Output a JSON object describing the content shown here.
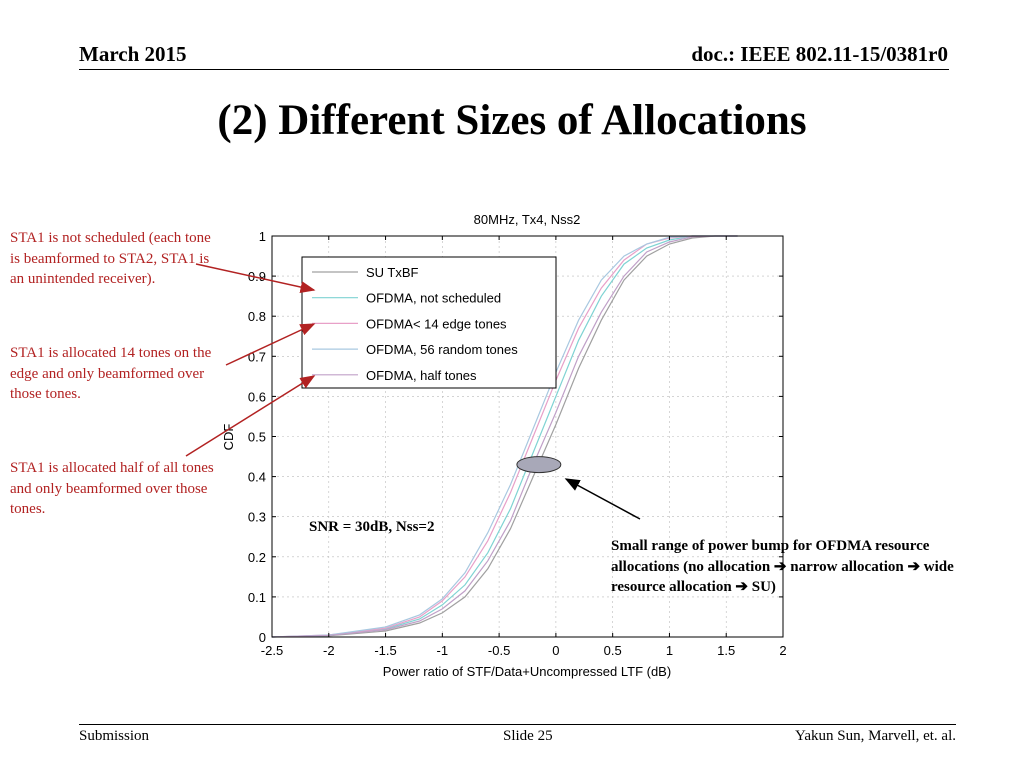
{
  "header": {
    "date": "March 2015",
    "doc": "doc.: IEEE 802.11-15/0381r0"
  },
  "slide_title": "(2) Different Sizes of Allocations",
  "annotations": {
    "note1": "STA1 is not scheduled (each tone is beamformed to STA2, STA1 is an unintended receiver).",
    "note2": "STA1 is allocated 14 tones on the edge and only beamformed over those tones.",
    "note3": "STA1 is allocated half of all tones and only beamformed over those tones.",
    "snr": "SNR = 30dB, Nss=2",
    "callout": "Small range of power bump for OFDMA resource allocations (no allocation ➔ narrow allocation ➔ wide resource allocation ➔ SU)"
  },
  "footer": {
    "left": "Submission",
    "center": "Slide 25",
    "right": "Yakun Sun,  Marvell, et. al."
  },
  "colors": {
    "note": "#b22222",
    "series": [
      "#a0a0a0",
      "#7fd3d3",
      "#e8a0c8",
      "#a8c8e0",
      "#c0a0c8"
    ],
    "highlight_fill": "#a8a8b8"
  },
  "chart_data": {
    "type": "line",
    "title": "80MHz, Tx4, Nss2",
    "xlabel": "Power ratio of STF/Data+Uncompressed LTF (dB)",
    "ylabel": "CDF",
    "xlim": [
      -2.5,
      2
    ],
    "ylim": [
      0,
      1
    ],
    "xticks": [
      -2.5,
      -2,
      -1.5,
      -1,
      -0.5,
      0,
      0.5,
      1,
      1.5,
      2
    ],
    "xtick_labels": [
      "-2.5",
      "-2",
      "-1.5",
      "-1",
      "-0.5",
      "0",
      "0.5",
      "1",
      "1.5",
      "2"
    ],
    "yticks": [
      0,
      0.1,
      0.2,
      0.3,
      0.4,
      0.5,
      0.6,
      0.7,
      0.8,
      0.9,
      1
    ],
    "ytick_labels": [
      "0",
      "0.1",
      "0.2",
      "0.3",
      "0.4",
      "0.5",
      "0.6",
      "0.7",
      "0.8",
      "0.9",
      "1"
    ],
    "grid": true,
    "legend_position": "top-left",
    "highlight": {
      "x": -0.15,
      "y": 0.43
    },
    "series": [
      {
        "name": "SU TxBF",
        "x": [
          -2.5,
          -2.0,
          -1.5,
          -1.2,
          -1.0,
          -0.8,
          -0.6,
          -0.4,
          -0.2,
          0.0,
          0.2,
          0.4,
          0.6,
          0.8,
          1.0,
          1.2,
          1.4,
          1.6
        ],
        "y": [
          0.0,
          0.003,
          0.015,
          0.035,
          0.06,
          0.1,
          0.17,
          0.27,
          0.4,
          0.53,
          0.67,
          0.79,
          0.89,
          0.95,
          0.98,
          0.995,
          1.0,
          1.0
        ]
      },
      {
        "name": "OFDMA, not scheduled",
        "x": [
          -2.5,
          -2.0,
          -1.5,
          -1.2,
          -1.0,
          -0.8,
          -0.6,
          -0.4,
          -0.2,
          0.0,
          0.2,
          0.4,
          0.6,
          0.8,
          1.0,
          1.2,
          1.4,
          1.6
        ],
        "y": [
          0.0,
          0.004,
          0.02,
          0.045,
          0.08,
          0.13,
          0.21,
          0.32,
          0.46,
          0.6,
          0.74,
          0.85,
          0.93,
          0.97,
          0.99,
          1.0,
          1.0,
          1.0
        ]
      },
      {
        "name": "OFDMA< 14 edge tones",
        "x": [
          -2.5,
          -2.0,
          -1.5,
          -1.2,
          -1.0,
          -0.8,
          -0.6,
          -0.4,
          -0.2,
          0.0,
          0.2,
          0.4,
          0.6,
          0.8,
          1.0,
          1.2,
          1.4,
          1.6
        ],
        "y": [
          0.0,
          0.005,
          0.022,
          0.05,
          0.09,
          0.15,
          0.24,
          0.36,
          0.5,
          0.64,
          0.77,
          0.87,
          0.94,
          0.98,
          0.995,
          1.0,
          1.0,
          1.0
        ]
      },
      {
        "name": "OFDMA, 56 random tones",
        "x": [
          -2.5,
          -2.0,
          -1.5,
          -1.2,
          -1.0,
          -0.8,
          -0.6,
          -0.4,
          -0.2,
          0.0,
          0.2,
          0.4,
          0.6,
          0.8,
          1.0,
          1.2,
          1.4,
          1.6
        ],
        "y": [
          0.0,
          0.005,
          0.025,
          0.055,
          0.095,
          0.16,
          0.26,
          0.38,
          0.52,
          0.66,
          0.79,
          0.89,
          0.95,
          0.98,
          0.997,
          1.0,
          1.0,
          1.0
        ]
      },
      {
        "name": "OFDMA, half tones",
        "x": [
          -2.5,
          -2.0,
          -1.5,
          -1.2,
          -1.0,
          -0.8,
          -0.6,
          -0.4,
          -0.2,
          0.0,
          0.2,
          0.4,
          0.6,
          0.8,
          1.0,
          1.2,
          1.4,
          1.6
        ],
        "y": [
          0.0,
          0.004,
          0.018,
          0.04,
          0.07,
          0.115,
          0.19,
          0.29,
          0.43,
          0.56,
          0.7,
          0.81,
          0.9,
          0.96,
          0.985,
          0.998,
          1.0,
          1.0
        ]
      }
    ]
  }
}
